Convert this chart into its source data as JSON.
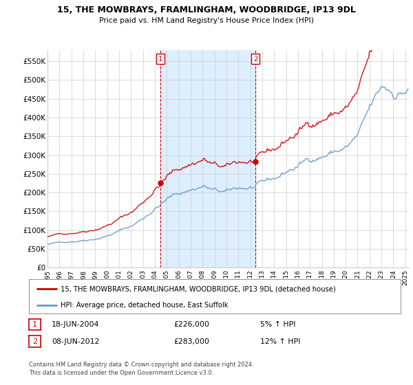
{
  "title": "15, THE MOWBRAYS, FRAMLINGHAM, WOODBRIDGE, IP13 9DL",
  "subtitle": "Price paid vs. HM Land Registry's House Price Index (HPI)",
  "legend_line1": "15, THE MOWBRAYS, FRAMLINGHAM, WOODBRIDGE, IP13 9DL (detached house)",
  "legend_line2": "HPI: Average price, detached house, East Suffolk",
  "annotation1_label": "1",
  "annotation1_date": "18-JUN-2004",
  "annotation1_price": "£226,000",
  "annotation1_pct": "5% ↑ HPI",
  "annotation2_label": "2",
  "annotation2_date": "08-JUN-2012",
  "annotation2_price": "£283,000",
  "annotation2_pct": "12% ↑ HPI",
  "footer": "Contains HM Land Registry data © Crown copyright and database right 2024.\nThis data is licensed under the Open Government Licence v3.0.",
  "price_color": "#cc0000",
  "hpi_color": "#6699cc",
  "shade_color": "#ddeeff",
  "annotation_color": "#cc0000",
  "grid_color": "#cccccc",
  "background_color": "#ffffff",
  "ylim": [
    0,
    580000
  ],
  "yticks": [
    0,
    50000,
    100000,
    150000,
    200000,
    250000,
    300000,
    350000,
    400000,
    450000,
    500000,
    550000
  ],
  "ytick_labels": [
    "£0",
    "£50K",
    "£100K",
    "£150K",
    "£200K",
    "£250K",
    "£300K",
    "£350K",
    "£400K",
    "£450K",
    "£500K",
    "£550K"
  ],
  "ann1_x": 2004.46,
  "ann1_y": 226000,
  "ann2_x": 2012.44,
  "ann2_y": 283000,
  "xmin": 1995.0,
  "xmax": 2025.3
}
